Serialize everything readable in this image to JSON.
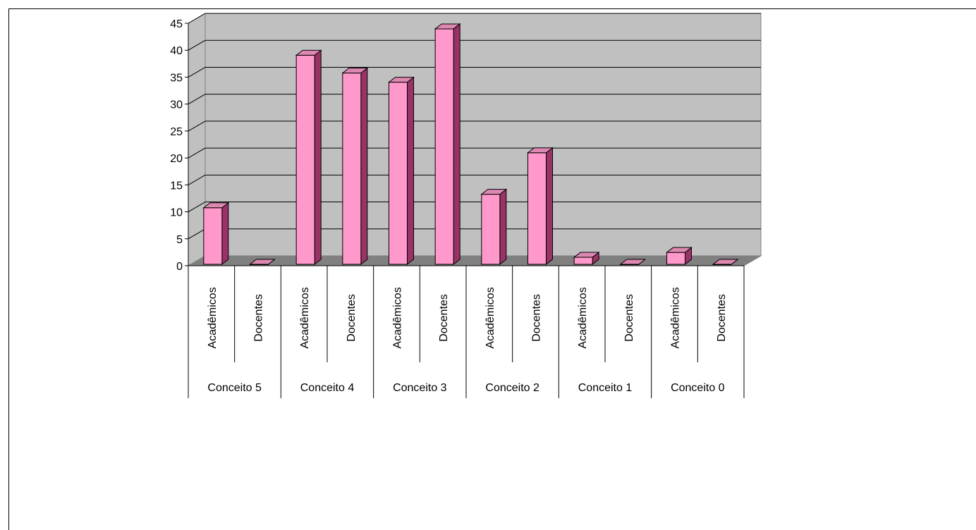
{
  "chart_data": {
    "type": "bar",
    "style": "3d-clustered-column",
    "groups": [
      "Conceito 5",
      "Conceito 4",
      "Conceito 3",
      "Conceito 2",
      "Conceito 1",
      "Conceito 0"
    ],
    "subcategories": [
      "Acadêmicos",
      "Docentes"
    ],
    "values": [
      [
        10.5,
        0
      ],
      [
        38.8,
        35.5
      ],
      [
        33.8,
        43.7
      ],
      [
        13,
        20.7
      ],
      [
        1.3,
        0
      ],
      [
        2.2,
        0
      ]
    ],
    "yticks": [
      "0",
      "5",
      "10",
      "15",
      "20",
      "25",
      "30",
      "35",
      "40",
      "45"
    ],
    "ylim": [
      0,
      45
    ],
    "grid": true,
    "legend": "none",
    "colors": {
      "bar_front": "#FF99CC",
      "bar_side": "#993366",
      "bar_top": "#DD88B0",
      "wall": "#C0C0C0",
      "floor": "#808080",
      "gridline": "#000000"
    }
  }
}
